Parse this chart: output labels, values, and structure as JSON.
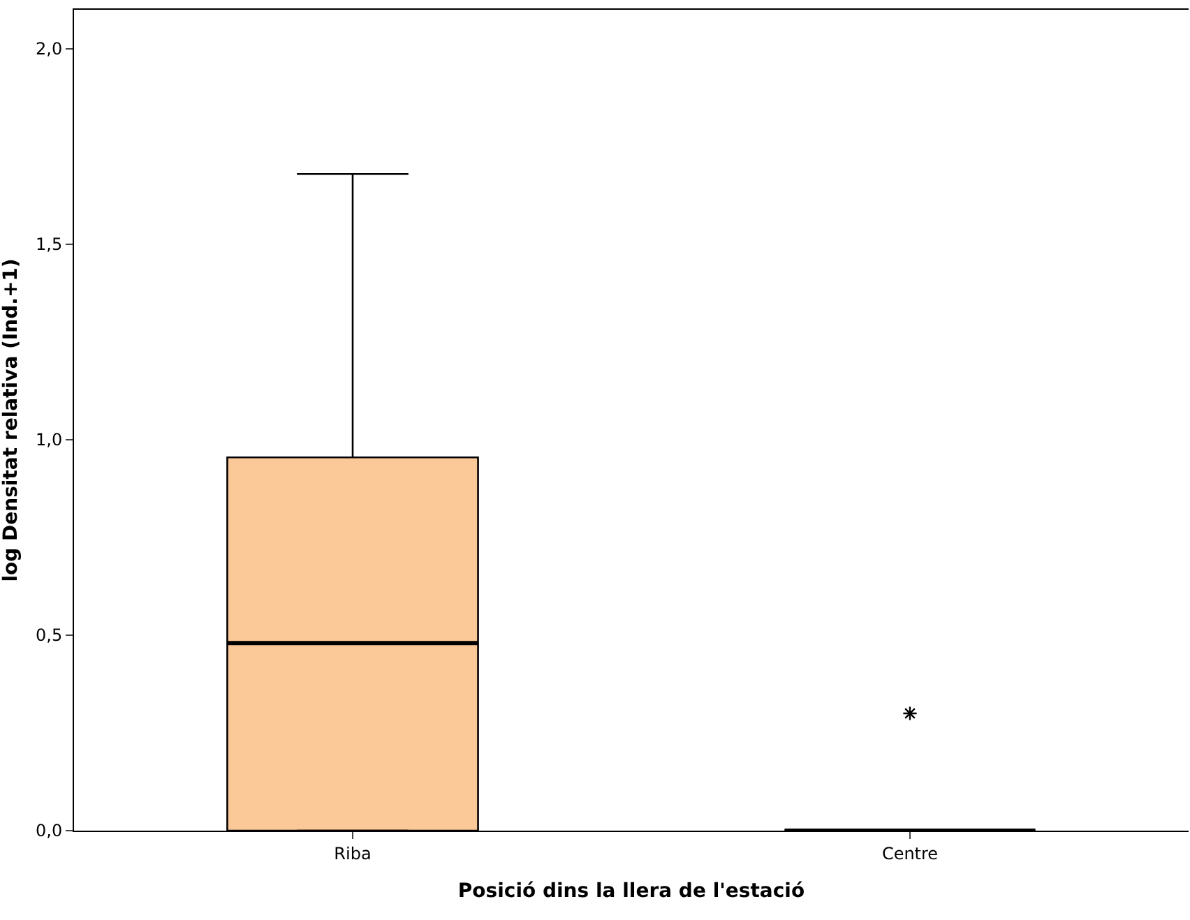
{
  "chart_data": {
    "type": "box",
    "xlabel": "Posició dins la llera de l'estació",
    "ylabel": "log Densitat relativa (Ind.+1)",
    "categories": [
      "Riba",
      "Centre"
    ],
    "boxes": [
      {
        "low": 0,
        "q1": 0,
        "median": 0.48,
        "q3": 0.955,
        "high": 1.68
      },
      {
        "low": 0,
        "q1": 0,
        "median": 0,
        "q3": 0,
        "high": 0,
        "outliers": [
          0.3
        ]
      }
    ],
    "colors": [
      "#fbc898",
      "#000000"
    ],
    "ylim": [
      0,
      2.1
    ],
    "yticks": [
      {
        "value": 0,
        "label": "0,0"
      },
      {
        "value": 0.5,
        "label": "0,5"
      },
      {
        "value": 1,
        "label": "1,0"
      },
      {
        "value": 1.5,
        "label": "1,5"
      },
      {
        "value": 2,
        "label": "2,0"
      }
    ]
  }
}
